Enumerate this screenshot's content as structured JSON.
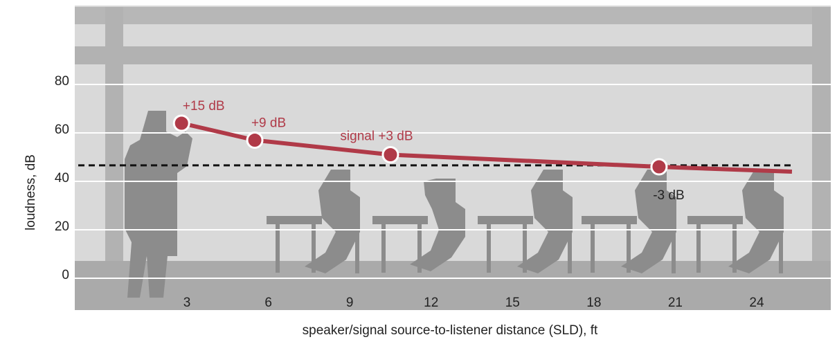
{
  "chart_data": {
    "type": "line",
    "xlabel": "speaker/signal source-to-listener distance (SLD), ft",
    "ylabel": "loudness, dB",
    "xlim": [
      0,
      24
    ],
    "ylim": [
      0,
      80
    ],
    "xticks": [
      3,
      6,
      9,
      12,
      15,
      18,
      21,
      24
    ],
    "yticks": [
      0,
      20,
      40,
      60,
      80
    ],
    "grid": true,
    "series": [
      {
        "color": "#b03a48",
        "x": [
          2.8,
          5.5,
          10.5,
          20.4,
          25.3
        ],
        "values": [
          64,
          57,
          51,
          46,
          44
        ]
      }
    ],
    "hline": {
      "value": 46.6,
      "color": "#111111",
      "style": "dashed"
    },
    "annotations": [
      {
        "text": "+15 dB",
        "x": 2.8,
        "y": 64,
        "color": "#b03a48"
      },
      {
        "text": "+9 dB",
        "x": 5.5,
        "y": 57,
        "color": "#b03a48"
      },
      {
        "text": "signal +3 dB",
        "x": 10.5,
        "y": 51,
        "color": "#b03a48"
      },
      {
        "text": "-3 dB",
        "x": 20.4,
        "y": 46,
        "color": "#222222"
      }
    ]
  }
}
